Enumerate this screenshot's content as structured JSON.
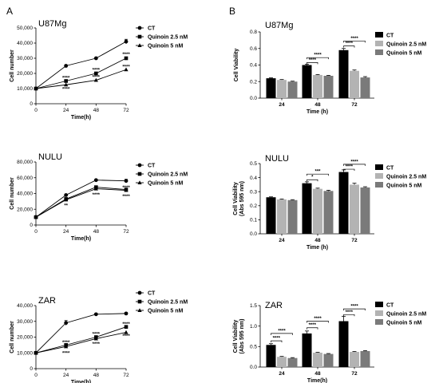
{
  "panels": {
    "left": "A",
    "right": "B"
  },
  "chart_data": [
    {
      "id": "a1",
      "type": "line",
      "title": "U87Mg",
      "xlabel": "Time(h)",
      "ylabel": "Cell number",
      "xlim": [
        0,
        72
      ],
      "ylim": [
        0,
        50000
      ],
      "xticks": [
        0,
        24,
        48,
        72
      ],
      "xticklabels": [
        "0",
        "24",
        "48",
        "72"
      ],
      "yticks": [
        0,
        10000,
        20000,
        30000,
        40000,
        50000
      ],
      "yticklabels": [
        "0",
        "10,000",
        "20,000",
        "30,000",
        "40,000",
        "50,000"
      ],
      "legend": "top-right",
      "series": [
        {
          "name": "CT",
          "marker": "circle",
          "x": [
            0,
            24,
            48,
            72
          ],
          "y": [
            10000,
            25000,
            30000,
            41000
          ],
          "err": [
            0,
            0,
            0,
            1500
          ]
        },
        {
          "name": "Quinoin 2.5 nM",
          "marker": "square",
          "x": [
            0,
            24,
            48,
            72
          ],
          "y": [
            10000,
            15000,
            20000,
            30000
          ],
          "err": [
            0,
            0,
            0,
            0
          ]
        },
        {
          "name": "Quinoin 5 nM",
          "marker": "triangle",
          "x": [
            0,
            24,
            48,
            72
          ],
          "y": [
            10000,
            12500,
            15500,
            22500
          ],
          "err": [
            0,
            0,
            0,
            0
          ]
        }
      ],
      "annotations": [
        {
          "text": "****",
          "x": 24,
          "y": 17200
        },
        {
          "text": "****",
          "x": 24,
          "y": 9800
        },
        {
          "text": "****",
          "x": 48,
          "y": 22300
        },
        {
          "text": "****",
          "x": 48,
          "y": 17600
        },
        {
          "text": "****",
          "x": 72,
          "y": 32600
        },
        {
          "text": "****",
          "x": 72,
          "y": 24600
        }
      ]
    },
    {
      "id": "a2",
      "type": "line",
      "title": "NULU",
      "xlabel": "Time(h)",
      "ylabel": "Cell number",
      "xlim": [
        0,
        72
      ],
      "ylim": [
        0,
        80000
      ],
      "xticks": [
        0,
        24,
        48,
        72
      ],
      "xticklabels": [
        "0",
        "24",
        "48",
        "72"
      ],
      "yticks": [
        0,
        20000,
        40000,
        60000,
        80000
      ],
      "yticklabels": [
        "0",
        "20,000",
        "40,000",
        "60,000",
        "80,000"
      ],
      "legend": "top-right",
      "series": [
        {
          "name": "CT",
          "marker": "circle",
          "x": [
            0,
            24,
            48,
            72
          ],
          "y": [
            10000,
            38000,
            57000,
            56000
          ],
          "err": [
            0,
            0,
            0,
            2000
          ]
        },
        {
          "name": "Quinoin 2.5 nM",
          "marker": "square",
          "x": [
            0,
            24,
            48,
            72
          ],
          "y": [
            10000,
            33000,
            48000,
            45000
          ],
          "err": [
            0,
            0,
            0,
            0
          ]
        },
        {
          "name": "Quinoin 5 nM",
          "marker": "triangle",
          "x": [
            0,
            24,
            48,
            72
          ],
          "y": [
            10000,
            32000,
            46000,
            44000
          ],
          "err": [
            0,
            0,
            0,
            0
          ]
        }
      ],
      "annotations": [
        {
          "text": "**",
          "x": 24,
          "y": 25000
        },
        {
          "text": "****",
          "x": 48,
          "y": 38500
        },
        {
          "text": "****",
          "x": 72,
          "y": 47500
        },
        {
          "text": "****",
          "x": 72,
          "y": 36500
        }
      ]
    },
    {
      "id": "a3",
      "type": "line",
      "title": "ZAR",
      "xlabel": "Time(h)",
      "ylabel": "Cell number",
      "xlim": [
        0,
        72
      ],
      "ylim": [
        0,
        40000
      ],
      "xticks": [
        0,
        24,
        48,
        72
      ],
      "xticklabels": [
        "0",
        "24",
        "48",
        "72"
      ],
      "yticks": [
        0,
        10000,
        20000,
        30000,
        40000
      ],
      "yticklabels": [
        "0",
        "10,000",
        "20,000",
        "30,000",
        "40,000"
      ],
      "legend": "top-right",
      "series": [
        {
          "name": "CT",
          "marker": "circle",
          "x": [
            0,
            24,
            48,
            72
          ],
          "y": [
            10000,
            29000,
            34500,
            35000
          ],
          "err": [
            0,
            1500,
            0,
            0
          ]
        },
        {
          "name": "Quinoin 2.5 nM",
          "marker": "square",
          "x": [
            0,
            24,
            48,
            72
          ],
          "y": [
            10000,
            15000,
            20000,
            26500
          ],
          "err": [
            0,
            0,
            0,
            0
          ]
        },
        {
          "name": "Quinoin 5 nM",
          "marker": "triangle",
          "x": [
            0,
            24,
            48,
            72
          ],
          "y": [
            10000,
            14000,
            19000,
            23000
          ],
          "err": [
            0,
            0,
            0,
            0
          ]
        }
      ],
      "annotations": [
        {
          "text": "****",
          "x": 24,
          "y": 16700
        },
        {
          "text": "****",
          "x": 24,
          "y": 9800
        },
        {
          "text": "****",
          "x": 48,
          "y": 22000
        },
        {
          "text": "****",
          "x": 48,
          "y": 15800
        },
        {
          "text": "****",
          "x": 72,
          "y": 28400
        },
        {
          "text": "****",
          "x": 72,
          "y": 20700
        }
      ]
    },
    {
      "id": "b1",
      "type": "bar",
      "title": "U87Mg",
      "xlabel": "Time (h)",
      "ylabel": "Cell Viability",
      "categories": [
        "24",
        "48",
        "72"
      ],
      "ylim": [
        0,
        0.8
      ],
      "yticks": [
        0.0,
        0.2,
        0.4,
        0.6,
        0.8
      ],
      "yticklabels": [
        "0.0",
        "0.2",
        "0.4",
        "0.6",
        "0.8"
      ],
      "legend": "top-right",
      "series": [
        {
          "name": "CT",
          "color": "#000000",
          "values": [
            0.24,
            0.4,
            0.58
          ],
          "err": [
            0.005,
            0.01,
            0.02
          ]
        },
        {
          "name": "Quinoin 2.5 nM",
          "color": "#b3b3b3",
          "values": [
            0.22,
            0.28,
            0.33
          ],
          "err": [
            0.005,
            0.005,
            0.01
          ]
        },
        {
          "name": "Quinoin 5 nM",
          "color": "#7a7a7a",
          "values": [
            0.2,
            0.27,
            0.25
          ],
          "err": [
            0.005,
            0.005,
            0.01
          ]
        }
      ],
      "brackets": [
        {
          "cat": 1,
          "from": 0,
          "to": 2,
          "level": 0.49,
          "label": "****"
        },
        {
          "cat": 1,
          "from": 0,
          "to": 1,
          "level": 0.43,
          "label": "****"
        },
        {
          "cat": 2,
          "from": 0,
          "to": 2,
          "level": 0.69,
          "label": "****"
        },
        {
          "cat": 2,
          "from": 0,
          "to": 1,
          "level": 0.63,
          "label": "****"
        }
      ]
    },
    {
      "id": "b2",
      "type": "bar",
      "title": "NULU",
      "xlabel": "Time (h)",
      "ylabel": "Cell Viability\n(Abs 595 nm)",
      "categories": [
        "24",
        "48",
        "72"
      ],
      "ylim": [
        0,
        0.5
      ],
      "yticks": [
        0.0,
        0.1,
        0.2,
        0.3,
        0.4,
        0.5
      ],
      "yticklabels": [
        "0.0",
        "0.1",
        "0.2",
        "0.3",
        "0.4",
        "0.5"
      ],
      "legend": "top-right",
      "series": [
        {
          "name": "CT",
          "color": "#000000",
          "values": [
            0.26,
            0.36,
            0.44
          ],
          "err": [
            0.003,
            0.01,
            0.015
          ]
        },
        {
          "name": "Quinoin 2.5 nM",
          "color": "#b3b3b3",
          "values": [
            0.245,
            0.32,
            0.35
          ],
          "err": [
            0.003,
            0.005,
            0.01
          ]
        },
        {
          "name": "Quinoin 5 nM",
          "color": "#7a7a7a",
          "values": [
            0.24,
            0.305,
            0.33
          ],
          "err": [
            0.003,
            0.005,
            0.005
          ]
        }
      ],
      "brackets": [
        {
          "cat": 1,
          "from": 0,
          "to": 2,
          "level": 0.425,
          "label": "***"
        },
        {
          "cat": 1,
          "from": 0,
          "to": 1,
          "level": 0.385,
          "label": "*"
        },
        {
          "cat": 2,
          "from": 0,
          "to": 2,
          "level": 0.495,
          "label": "****"
        },
        {
          "cat": 2,
          "from": 0,
          "to": 1,
          "level": 0.46,
          "label": "****"
        }
      ]
    },
    {
      "id": "b3",
      "type": "bar",
      "title": "ZAR",
      "xlabel": "Time(h)",
      "ylabel": "Cell Viability\n(Abs 595 nm)",
      "categories": [
        "24",
        "48",
        "72"
      ],
      "ylim": [
        0,
        1.5
      ],
      "yticks": [
        0.0,
        0.5,
        1.0,
        1.5
      ],
      "yticklabels": [
        "0.0",
        "0.5",
        "1.0",
        "1.5"
      ],
      "legend": "top-right",
      "series": [
        {
          "name": "CT",
          "color": "#000000",
          "values": [
            0.54,
            0.82,
            1.12
          ],
          "err": [
            0.03,
            0.06,
            0.12
          ]
        },
        {
          "name": "Quinoin 2.5 nM",
          "color": "#b3b3b3",
          "values": [
            0.25,
            0.35,
            0.37
          ],
          "err": [
            0.01,
            0.01,
            0.01
          ]
        },
        {
          "name": "Quinoin 5 nM",
          "color": "#7a7a7a",
          "values": [
            0.22,
            0.32,
            0.39
          ],
          "err": [
            0.01,
            0.01,
            0.01
          ]
        }
      ],
      "brackets": [
        {
          "cat": 0,
          "from": 0,
          "to": 2,
          "level": 0.82,
          "label": "****"
        },
        {
          "cat": 0,
          "from": 0,
          "to": 1,
          "level": 0.64,
          "label": "****"
        },
        {
          "cat": 1,
          "from": 0,
          "to": 2,
          "level": 1.12,
          "label": "****"
        },
        {
          "cat": 1,
          "from": 0,
          "to": 1,
          "level": 0.96,
          "label": "****"
        },
        {
          "cat": 2,
          "from": 0,
          "to": 2,
          "level": 1.42,
          "label": "****"
        },
        {
          "cat": 2,
          "from": 0,
          "to": 1,
          "level": 1.28,
          "label": "****"
        }
      ]
    }
  ]
}
